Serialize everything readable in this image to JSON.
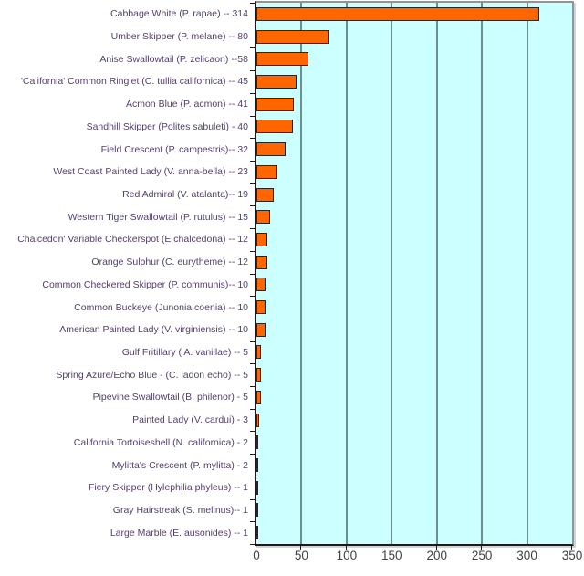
{
  "chart_data": {
    "type": "bar",
    "orientation": "horizontal",
    "title": "",
    "xlabel": "",
    "ylabel": "",
    "legend": false,
    "grid": true,
    "xlim": [
      0,
      350
    ],
    "xticks": [
      0,
      50,
      100,
      150,
      200,
      250,
      300,
      350
    ],
    "categories": [
      "Cabbage White (P. rapae) -- 314",
      "Umber Skipper (P. melane) -- 80",
      "Anise Swallowtail (P. zelicaon) --58",
      "'California' Common Ringlet (C. tullia californica) -- 45",
      "Acmon Blue (P. acmon) -- 41",
      "Sandhill Skipper (Polites sabuleti) - 40",
      "Field Crescent (P. campestris)-- 32",
      "West Coast Painted Lady (V. anna-bella) -- 23",
      "Red Admiral (V. atalanta)-- 19",
      "Western Tiger Swallowtail (P. rutulus) -- 15",
      "Chalcedon' Variable Checkerspot (E chalcedona) -- 12",
      "Orange Sulphur (C. eurytheme) -- 12",
      "Common Checkered Skipper (P. communis)-- 10",
      "Common Buckeye (Junonia coenia) -- 10",
      "American Painted Lady (V. virginiensis) -- 10",
      "Gulf Fritillary ( A. vanillae) -- 5",
      "Spring Azure/Echo Blue - (C. ladon echo) -- 5",
      "Pipevine Swallowtail (B. philenor) - 5",
      "Painted Lady (V. cardui) - 3",
      "California Tortoiseshell (N. californica) - 2",
      "Mylitta's Crescent (P. mylitta) - 2",
      "Fiery Skipper (Hylephilia phyleus) -- 1",
      "Gray Hairstreak (S. melinus)-- 1",
      "Large Marble (E. ausonides) -- 1"
    ],
    "values": [
      314,
      80,
      58,
      45,
      41,
      40,
      32,
      23,
      19,
      15,
      12,
      12,
      10,
      10,
      10,
      5,
      5,
      5,
      3,
      2,
      2,
      1,
      1,
      1
    ],
    "colors": {
      "bar_fill": "#FF6600",
      "bar_border": "#262626",
      "plot_background": "#CCFFFF",
      "gridline": "#679090",
      "category_label_text": "#54406B",
      "axis_tick_text": "#3F3F46",
      "axis_line": "#1A1A1A"
    }
  }
}
